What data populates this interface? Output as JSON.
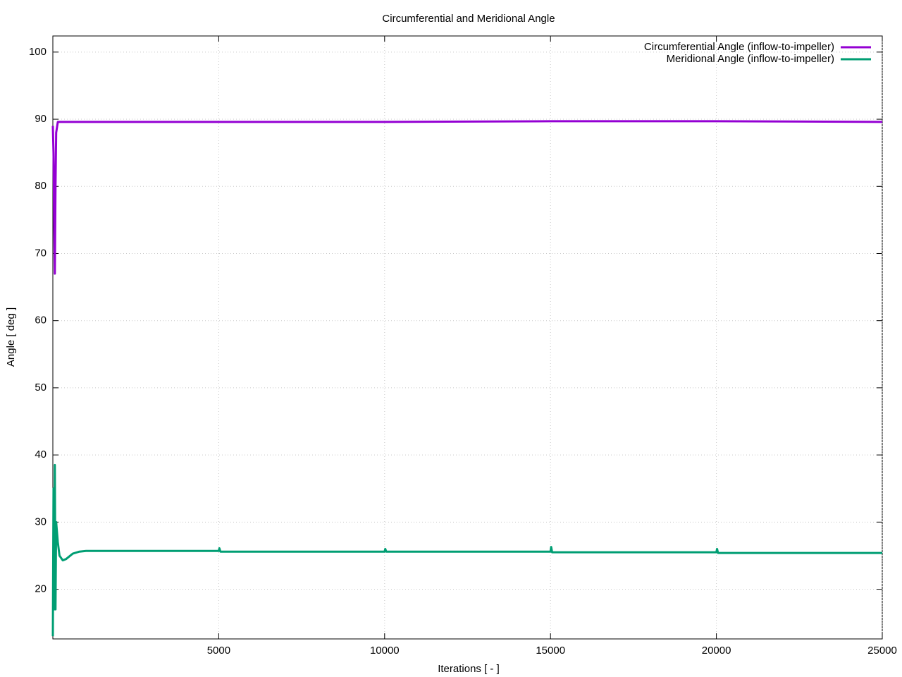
{
  "chart_data": {
    "type": "line",
    "title": "Circumferential and Meridional Angle",
    "x_label": "Iterations [ - ]",
    "y_label": "Angle [ deg ]",
    "xlim": [
      0,
      25000
    ],
    "xticks": [
      5000,
      10000,
      15000,
      20000,
      25000
    ],
    "ylim": [
      12.6,
      102.4
    ],
    "yticks": [
      20,
      30,
      40,
      50,
      60,
      70,
      80,
      90,
      100
    ],
    "grid": true,
    "legend": "top-right",
    "series": [
      {
        "name": "Circumferential Angle (inflow-to-impeller)",
        "color": "#9400d3",
        "x": [
          0,
          20,
          40,
          60,
          80,
          100,
          150,
          200,
          300,
          5000,
          10000,
          15000,
          20000,
          25000
        ],
        "values": [
          89,
          85,
          75,
          67,
          80,
          88,
          89.6,
          89.6,
          89.6,
          89.6,
          89.6,
          89.7,
          89.7,
          89.6
        ]
      },
      {
        "name": "Meridional Angle (inflow-to-impeller)",
        "color": "#009e73",
        "x": [
          0,
          20,
          40,
          60,
          80,
          100,
          150,
          200,
          300,
          400,
          600,
          800,
          1000,
          5000,
          5020,
          5050,
          10000,
          10020,
          10050,
          15000,
          15020,
          15050,
          20000,
          20020,
          20050,
          25000
        ],
        "values": [
          13,
          35,
          17,
          38.5,
          17,
          30,
          27,
          25,
          24.3,
          24.5,
          25.3,
          25.6,
          25.7,
          25.7,
          26.1,
          25.6,
          25.6,
          26,
          25.6,
          25.6,
          26.3,
          25.5,
          25.5,
          26,
          25.4,
          25.4
        ]
      }
    ]
  }
}
